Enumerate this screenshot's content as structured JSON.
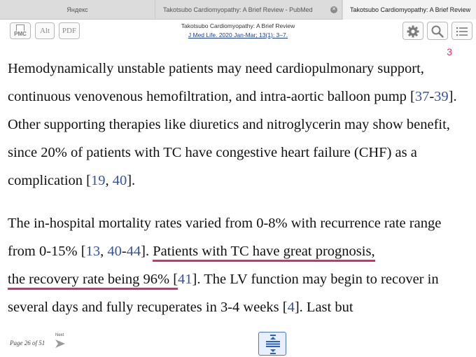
{
  "tabs": [
    {
      "label": "Яндекс"
    },
    {
      "label": "Takotsubo Cardiomyopathy: A Brief Review - PubMed"
    },
    {
      "label": "Takotsubo Cardiomyopathy: A Brief Review"
    }
  ],
  "toolbar": {
    "pmc_label": "PMC",
    "alt_label": "Alt",
    "pdf_label": "PDF",
    "article_title": "Takotsubo Cardiomyopathy: A Brief Review",
    "citation": "J Med Life. 2020 Jan-Mar; 13(1): 3–7.",
    "icons": [
      "gear-icon",
      "search-icon",
      "list-icon"
    ]
  },
  "page_marker": "3",
  "body": {
    "p1": {
      "a": "Hemodynamically unstable patients may need cardiopulmonary support, continuous venovenous hemofiltration, and intra-aortic balloon pump [",
      "r1": "37",
      "dash": "-",
      "r2": "39",
      "b": "]. Other supporting therapies like diuretics and nitroglycerin may show benefit, since 20% of patients with TC have congestive heart failure (CHF) as a complication [",
      "r3": "19",
      "comma": ", ",
      "r4": "40",
      "c": "]."
    },
    "p2": {
      "a": "The in-hospital mortality rates varied from 0-8% with recurrence rate range from 0-15% [",
      "r1": "13",
      "comma": ", ",
      "r2": "40",
      "dash": "-",
      "r3": "44",
      "b": "]. ",
      "hl1": "Patients with TC have great prognosis,",
      "hl2": "the recovery rate being 96% [",
      "r4": "41",
      "c": "]. The LV function may begin to recover in several days and fully recuperates in 3-4 weeks [",
      "r5": "4",
      "d": "]. Last but"
    }
  },
  "footer": {
    "page_info": "Page 26 of 51",
    "next_label": "Next"
  },
  "colors": {
    "link": "#3452a6",
    "highlight": "#d92e6c"
  }
}
